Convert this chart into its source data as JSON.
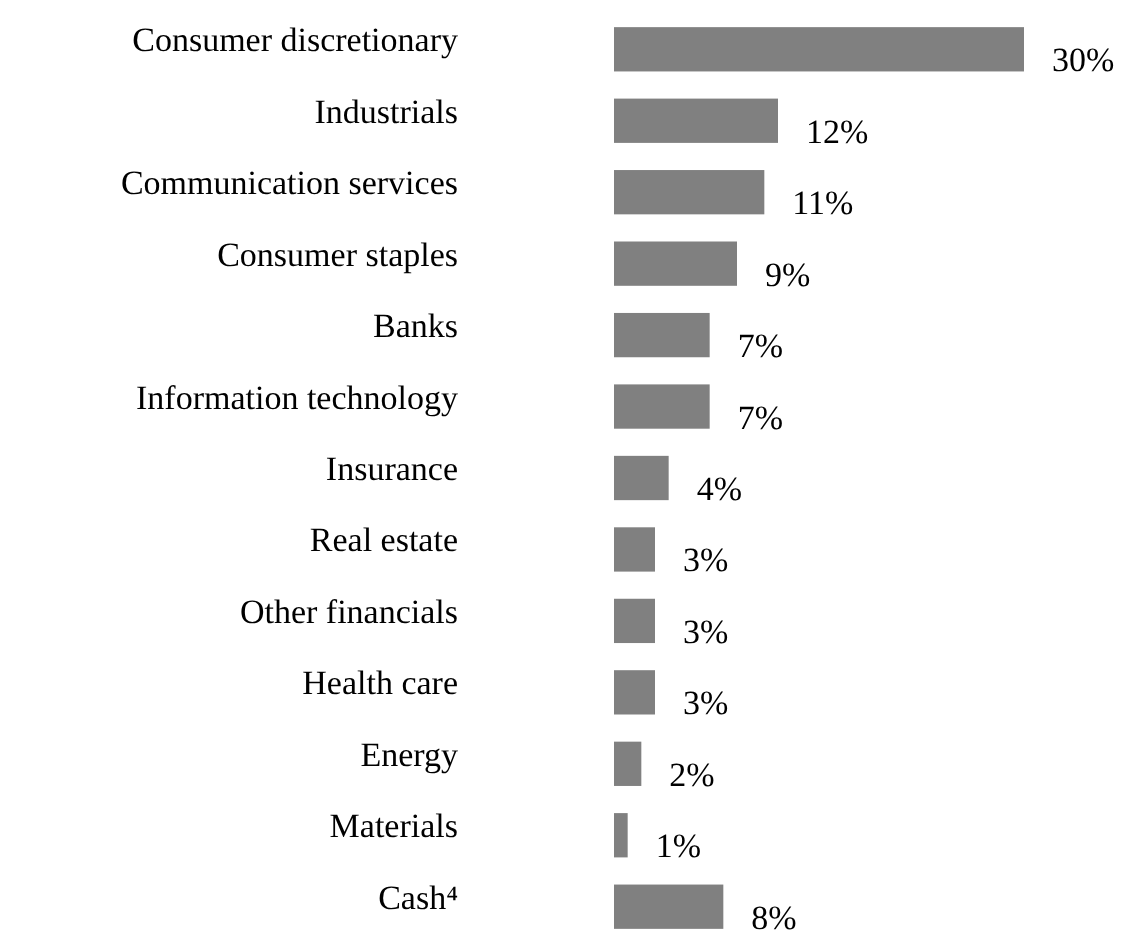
{
  "chart_data": {
    "type": "bar",
    "orientation": "horizontal",
    "color": "#808080",
    "value_labels": [
      "30%",
      "12%",
      "11%",
      "9%",
      "7%",
      "7%",
      "4%",
      "3%",
      "3%",
      "3%",
      "2%",
      "1%",
      "8%"
    ],
    "categories": [
      "Consumer discretionary",
      "Industrials",
      "Communication services",
      "Consumer staples",
      "Banks",
      "Information technology",
      "Insurance",
      "Real estate",
      "Other financials",
      "Health care",
      "Energy",
      "Materials",
      "Cash⁴"
    ],
    "values": [
      30,
      12,
      11,
      9,
      7,
      7,
      4,
      3,
      3,
      3,
      2,
      1,
      8
    ]
  }
}
